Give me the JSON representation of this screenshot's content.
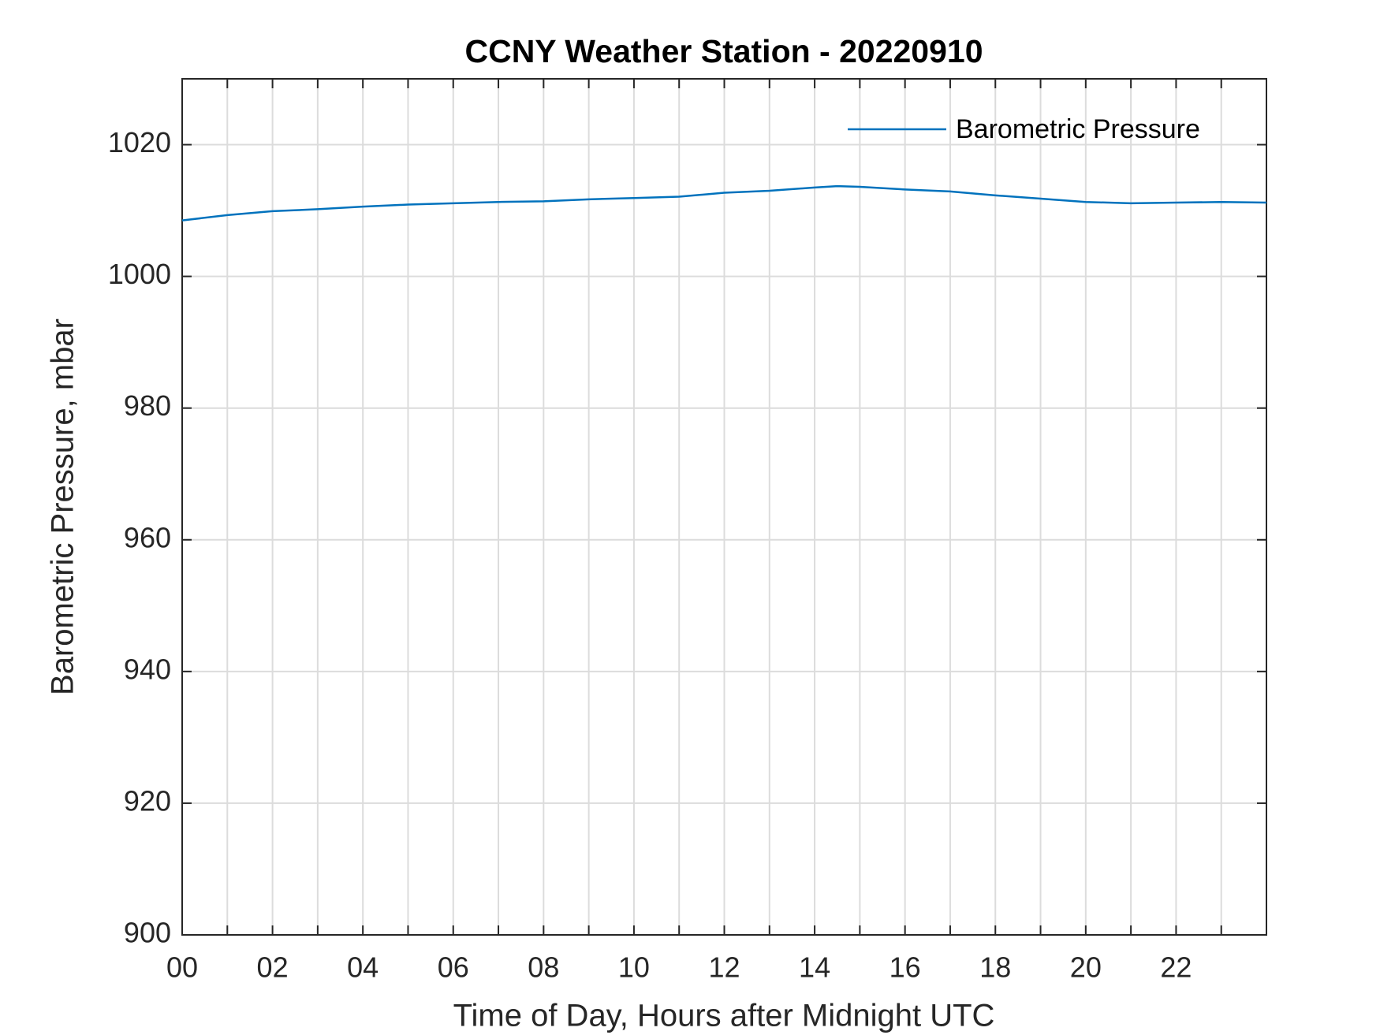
{
  "chart_data": {
    "type": "line",
    "title": "CCNY Weather Station - 20220910",
    "x_label": "Time of Day, Hours after Midnight UTC",
    "y_label": "Barometric Pressure, mbar",
    "x": [
      0,
      1,
      2,
      3,
      4,
      5,
      6,
      7,
      8,
      9,
      10,
      11,
      12,
      13,
      14,
      14.5,
      15,
      16,
      17,
      18,
      19,
      20,
      21,
      22,
      23,
      24
    ],
    "series": [
      {
        "name": "Barometric Pressure",
        "color": "#0072bd",
        "values": [
          1008.5,
          1009.3,
          1009.9,
          1010.2,
          1010.6,
          1010.9,
          1011.1,
          1011.3,
          1011.4,
          1011.7,
          1011.9,
          1012.1,
          1012.7,
          1013.0,
          1013.5,
          1013.7,
          1013.6,
          1013.2,
          1012.9,
          1012.3,
          1011.8,
          1011.3,
          1011.1,
          1011.2,
          1011.3,
          1011.2
        ]
      }
    ],
    "xlim": [
      0,
      24
    ],
    "xticks": [
      {
        "value": 0,
        "label": "00"
      },
      {
        "value": 2,
        "label": "02"
      },
      {
        "value": 4,
        "label": "04"
      },
      {
        "value": 6,
        "label": "06"
      },
      {
        "value": 8,
        "label": "08"
      },
      {
        "value": 10,
        "label": "10"
      },
      {
        "value": 12,
        "label": "12"
      },
      {
        "value": 14,
        "label": "14"
      },
      {
        "value": 16,
        "label": "16"
      },
      {
        "value": 18,
        "label": "18"
      },
      {
        "value": 20,
        "label": "20"
      },
      {
        "value": 22,
        "label": "22"
      }
    ],
    "xminorticks": [
      1,
      3,
      5,
      7,
      9,
      11,
      13,
      15,
      17,
      19,
      21,
      23
    ],
    "ylim": [
      900,
      1030
    ],
    "yticks": [
      900,
      920,
      940,
      960,
      980,
      1000,
      1020
    ],
    "grid": true,
    "legend": "top-right"
  }
}
